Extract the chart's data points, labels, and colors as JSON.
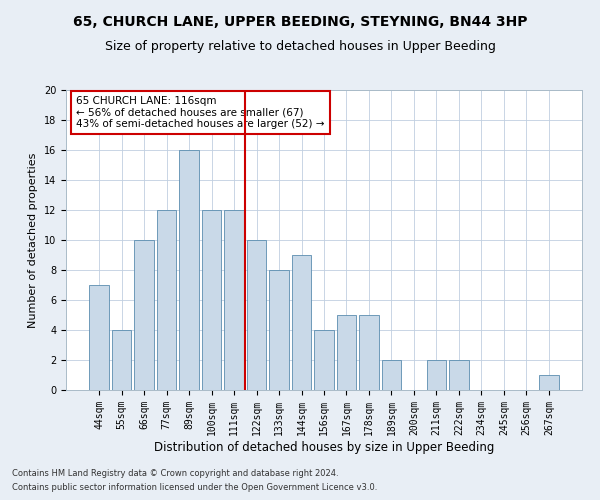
{
  "title1": "65, CHURCH LANE, UPPER BEEDING, STEYNING, BN44 3HP",
  "title2": "Size of property relative to detached houses in Upper Beeding",
  "xlabel": "Distribution of detached houses by size in Upper Beeding",
  "ylabel": "Number of detached properties",
  "footnote1": "Contains HM Land Registry data © Crown copyright and database right 2024.",
  "footnote2": "Contains public sector information licensed under the Open Government Licence v3.0.",
  "bin_labels": [
    "44sqm",
    "55sqm",
    "66sqm",
    "77sqm",
    "89sqm",
    "100sqm",
    "111sqm",
    "122sqm",
    "133sqm",
    "144sqm",
    "156sqm",
    "167sqm",
    "178sqm",
    "189sqm",
    "200sqm",
    "211sqm",
    "222sqm",
    "234sqm",
    "245sqm",
    "256sqm",
    "267sqm"
  ],
  "bar_heights": [
    7,
    4,
    10,
    12,
    16,
    12,
    12,
    10,
    8,
    9,
    4,
    5,
    5,
    2,
    0,
    2,
    2,
    0,
    0,
    0,
    1
  ],
  "bar_color": "#c9d9e8",
  "bar_edge_color": "#5b8db0",
  "property_line_color": "#cc0000",
  "annotation_text": "65 CHURCH LANE: 116sqm\n← 56% of detached houses are smaller (67)\n43% of semi-detached houses are larger (52) →",
  "annotation_box_color": "#ffffff",
  "annotation_box_edge": "#cc0000",
  "ylim": [
    0,
    20
  ],
  "yticks": [
    0,
    2,
    4,
    6,
    8,
    10,
    12,
    14,
    16,
    18,
    20
  ],
  "bg_color": "#e8eef5",
  "plot_bg_color": "#ffffff",
  "title1_fontsize": 10,
  "title2_fontsize": 9,
  "xlabel_fontsize": 8.5,
  "ylabel_fontsize": 8,
  "tick_fontsize": 7,
  "annotation_fontsize": 7.5,
  "footnote_fontsize": 6
}
